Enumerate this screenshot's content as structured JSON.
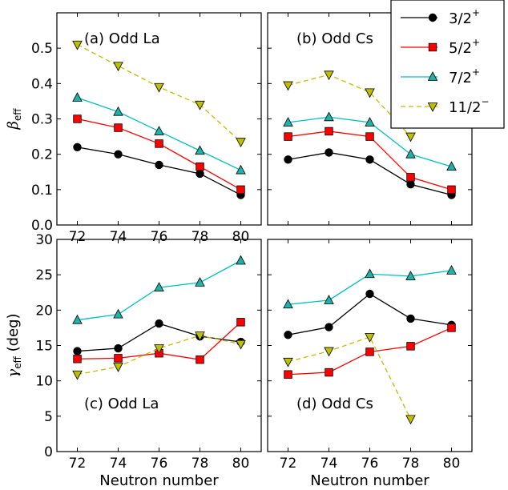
{
  "chart_data": [
    {
      "type": "line",
      "panel_label": "(a) Odd La",
      "x": [
        72,
        74,
        76,
        78,
        80
      ],
      "xticks": [
        "72",
        "74",
        "76",
        "78",
        "80"
      ],
      "yticks": [
        "0.0",
        "0.1",
        "0.2",
        "0.3",
        "0.4",
        "0.5"
      ],
      "ylabel": "β",
      "ylabel_sub": "eff",
      "ylim": [
        0.0,
        0.6
      ],
      "xlim": [
        71,
        81
      ],
      "series": [
        {
          "name": "3/2+",
          "values": [
            0.22,
            0.2,
            0.17,
            0.145,
            0.085
          ]
        },
        {
          "name": "5/2+",
          "values": [
            0.3,
            0.275,
            0.23,
            0.165,
            0.1
          ]
        },
        {
          "name": "7/2+",
          "values": [
            0.36,
            0.32,
            0.265,
            0.21,
            0.155
          ]
        },
        {
          "name": "11/2-",
          "values": [
            0.51,
            0.45,
            0.39,
            0.34,
            0.235
          ]
        }
      ]
    },
    {
      "type": "line",
      "panel_label": "(b) Odd Cs",
      "x": [
        72,
        74,
        76,
        78,
        80
      ],
      "xticks": [],
      "yticks": [],
      "ylim": [
        0.0,
        0.6
      ],
      "xlim": [
        71,
        81
      ],
      "series": [
        {
          "name": "3/2+",
          "values": [
            0.185,
            0.205,
            0.185,
            0.115,
            0.085
          ]
        },
        {
          "name": "5/2+",
          "values": [
            0.25,
            0.265,
            0.25,
            0.135,
            0.1
          ]
        },
        {
          "name": "7/2+",
          "values": [
            0.29,
            0.305,
            0.29,
            0.2,
            0.165
          ]
        },
        {
          "name": "11/2-",
          "values": [
            0.395,
            0.425,
            0.375,
            0.25,
            null
          ]
        }
      ]
    },
    {
      "type": "line",
      "panel_label": "(c) Odd La",
      "x": [
        72,
        74,
        76,
        78,
        80
      ],
      "xticks": [
        "72",
        "74",
        "76",
        "78",
        "80"
      ],
      "yticks": [
        "0",
        "5",
        "10",
        "15",
        "20",
        "25",
        "30"
      ],
      "xlabel": "Neutron number",
      "ylabel": "γ",
      "ylabel_sub": "eff",
      "ylabel_suffix": " (deg)",
      "ylim": [
        0,
        30
      ],
      "xlim": [
        71,
        81
      ],
      "series": [
        {
          "name": "3/2+",
          "values": [
            14.2,
            14.6,
            18.1,
            16.3,
            15.5
          ]
        },
        {
          "name": "5/2+",
          "values": [
            13.1,
            13.2,
            13.9,
            13.0,
            18.3
          ]
        },
        {
          "name": "7/2+",
          "values": [
            18.6,
            19.4,
            23.2,
            23.9,
            27.0
          ]
        },
        {
          "name": "11/2-",
          "values": [
            10.9,
            12.0,
            14.6,
            16.4,
            15.2
          ]
        }
      ]
    },
    {
      "type": "line",
      "panel_label": "(d) Odd Cs",
      "x": [
        72,
        74,
        76,
        78,
        80
      ],
      "xticks": [
        "72",
        "74",
        "76",
        "78",
        "80"
      ],
      "yticks": [],
      "xlabel": "Neutron number",
      "ylim": [
        0,
        30
      ],
      "xlim": [
        71,
        81
      ],
      "series": [
        {
          "name": "3/2+",
          "values": [
            16.5,
            17.6,
            22.3,
            18.8,
            17.9
          ]
        },
        {
          "name": "5/2+",
          "values": [
            10.9,
            11.2,
            14.1,
            14.9,
            17.5
          ]
        },
        {
          "name": "7/2+",
          "values": [
            20.8,
            21.4,
            25.1,
            24.8,
            25.6
          ]
        },
        {
          "name": "11/2-",
          "values": [
            12.7,
            14.2,
            16.2,
            4.6,
            null
          ]
        }
      ]
    }
  ],
  "legend": {
    "placement": "top-right",
    "entries": [
      {
        "key": "3/2+",
        "num": "3",
        "den": "2",
        "sup": "+",
        "color": "#000000",
        "marker": "circle",
        "dashed": false
      },
      {
        "key": "5/2+",
        "num": "5",
        "den": "2",
        "sup": "+",
        "color": "#ff0000",
        "marker": "square",
        "dashed": false
      },
      {
        "key": "7/2+",
        "num": "7",
        "den": "2",
        "sup": "+",
        "color": "#00bfbf",
        "marker": "triangle-up",
        "dashed": false
      },
      {
        "key": "11/2-",
        "num": "11",
        "den": "2",
        "sup": "−",
        "color": "#bfbf00",
        "marker": "triangle-down",
        "dashed": true
      }
    ]
  },
  "colors": {
    "3/2+": {
      "line": "#000000",
      "fill": "#000000"
    },
    "5/2+": {
      "line": "#ff0000",
      "fill": "#ff0000"
    },
    "7/2+": {
      "line": "#00bfbf",
      "fill": "#20b2aa"
    },
    "11/2-": {
      "line": "#bfbf00",
      "fill": "#bfbf00"
    }
  }
}
